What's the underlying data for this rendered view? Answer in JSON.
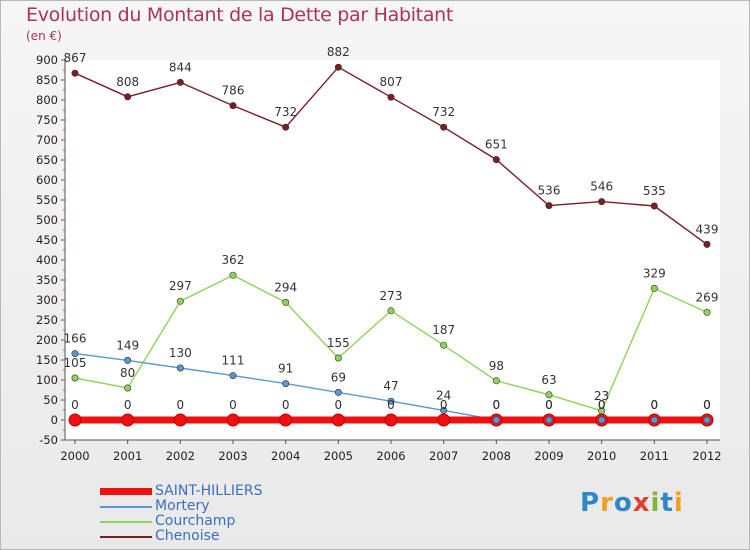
{
  "title": "Evolution du Montant de la Dette par Habitant",
  "subtitle": "(en €)",
  "logo": {
    "text": "Proxiti",
    "colors": [
      "#2f86c8",
      "#f0a020",
      "#2f86c8",
      "#e04030",
      "#7cb83a",
      "#2f86c8",
      "#f0a020"
    ]
  },
  "chart_data": {
    "type": "line",
    "x": [
      "2000",
      "2001",
      "2002",
      "2003",
      "2004",
      "2005",
      "2006",
      "2007",
      "2008",
      "2009",
      "2010",
      "2011",
      "2012"
    ],
    "ylim": [
      -50,
      900
    ],
    "yticks": [
      -50,
      0,
      50,
      100,
      150,
      200,
      250,
      300,
      350,
      400,
      450,
      500,
      550,
      600,
      650,
      700,
      750,
      800,
      850,
      900
    ],
    "grid": false,
    "legend_position": "bottom-left",
    "series": [
      {
        "name": "Chenoise",
        "color": "#7a1e24",
        "values": [
          867,
          808,
          844,
          786,
          732,
          882,
          807,
          732,
          651,
          536,
          546,
          535,
          439
        ],
        "labels": [
          "867",
          "808",
          "844",
          "786",
          "732",
          "882",
          "807",
          "732",
          "651",
          "536",
          "546",
          "535",
          "439"
        ]
      },
      {
        "name": "Courchamp",
        "color": "#8ed45a",
        "values": [
          105,
          80,
          297,
          362,
          294,
          155,
          273,
          187,
          98,
          63,
          23,
          329,
          269
        ],
        "labels": [
          "105",
          "80",
          "297",
          "362",
          "294",
          "155",
          "273",
          "187",
          "98",
          "63",
          "23",
          "329",
          "269"
        ]
      },
      {
        "name": "Mortery",
        "color": "#5b98d0",
        "values": [
          166,
          149,
          130,
          111,
          91,
          69,
          47,
          24,
          0,
          0,
          0,
          0,
          0
        ],
        "labels": [
          "166",
          "149",
          "130",
          "111",
          "91",
          "69",
          "47",
          "24",
          "0",
          "0",
          "0",
          "0",
          "0"
        ]
      },
      {
        "name": "SAINT-HILLIERS",
        "color": "#ee1111",
        "values": [
          0,
          0,
          0,
          0,
          0,
          0,
          0,
          0,
          0,
          0,
          0,
          0,
          0
        ],
        "labels": [
          "0",
          "0",
          "0",
          "0",
          "0",
          "0",
          "0",
          "0",
          "0",
          "0",
          "0",
          "0",
          "0"
        ]
      }
    ],
    "legend": [
      "SAINT-HILLIERS",
      "Mortery",
      "Courchamp",
      "Chenoise"
    ]
  }
}
